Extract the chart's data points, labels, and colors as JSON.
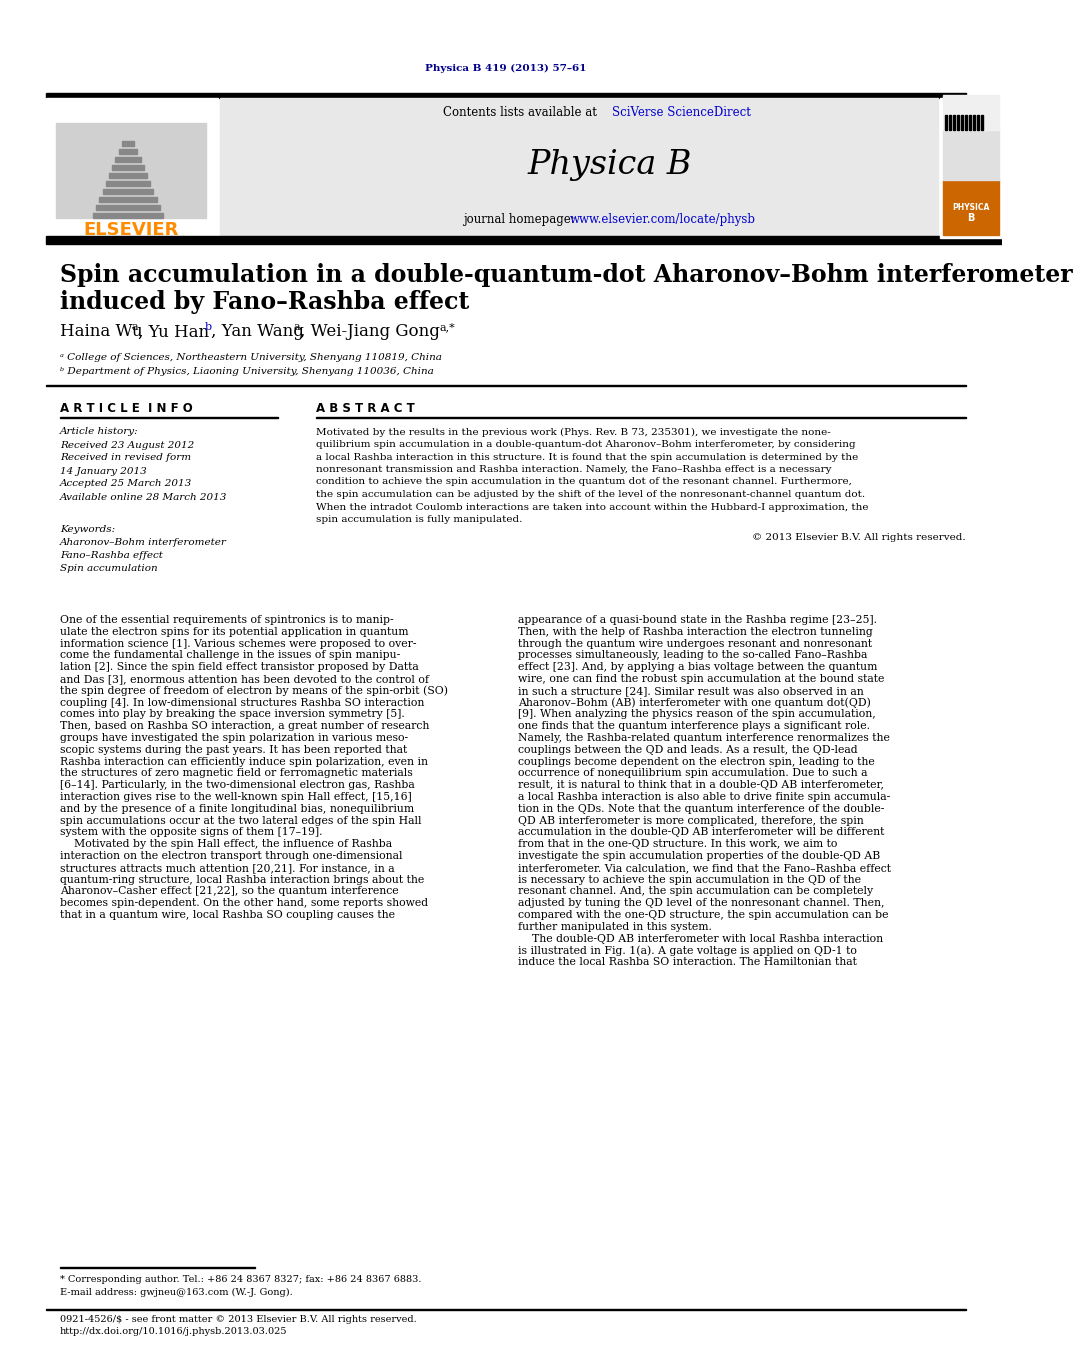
{
  "page_bg": "#ffffff",
  "header_top_text": "Physica B 419 (2013) 57–61",
  "header_top_color": "#00008B",
  "journal_header_bg": "#e8e8e8",
  "elsevier_color": "#FF8C00",
  "elsevier_text": "ELSEVIER",
  "journal_name": "Physica B",
  "sciverse_color": "#0000CD",
  "homepage_url_color": "#0000CD",
  "paper_title_line1": "Spin accumulation in a double-quantum-dot Aharonov–Bohm interferometer",
  "paper_title_line2": "induced by Fano–Rashba effect",
  "affil_a": "ᵃ College of Sciences, Northeastern University, Shenyang 110819, China",
  "affil_b": "ᵇ Department of Physics, Liaoning University, Shenyang 110036, China",
  "article_info_header": "A R T I C L E  I N F O",
  "abstract_header": "A B S T R A C T",
  "article_history_label": "Article history:",
  "received_label": "Received 23 August 2012",
  "revised_label": "Received in revised form",
  "revised_date": "14 January 2013",
  "accepted_label": "Accepted 25 March 2013",
  "available_label": "Available online 28 March 2013",
  "keywords_label": "Keywords:",
  "kw1": "Aharonov–Bohm interferometer",
  "kw2": "Fano–Rashba effect",
  "kw3": "Spin accumulation",
  "copyright": "© 2013 Elsevier B.V. All rights reserved.",
  "footnote_line1": "* Corresponding author. Tel.: +86 24 8367 8327; fax: +86 24 8367 6883.",
  "footnote_line2": "E-mail address: gwjneu@163.com (W.-J. Gong).",
  "copyright_bottom": "0921-4526/$ - see front matter © 2013 Elsevier B.V. All rights reserved.",
  "doi_line": "http://dx.doi.org/10.1016/j.physb.2013.03.025"
}
